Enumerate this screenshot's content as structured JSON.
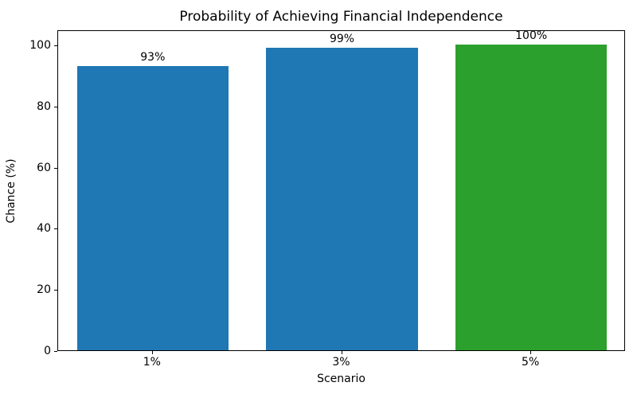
{
  "chart_data": {
    "type": "bar",
    "title": "Probability of Achieving Financial Independence",
    "xlabel": "Scenario",
    "ylabel": "Chance (%)",
    "categories": [
      "1%",
      "3%",
      "5%"
    ],
    "values": [
      93,
      99,
      100
    ],
    "bar_labels": [
      "93%",
      "99%",
      "100%"
    ],
    "bar_colors": [
      "#1f77b4",
      "#1f77b4",
      "#2ca02c"
    ],
    "yticks": [
      0,
      20,
      40,
      60,
      80,
      100
    ],
    "ylim": [
      0,
      105
    ],
    "grid": false,
    "legend": "none",
    "bar_width_fraction": 0.8
  }
}
